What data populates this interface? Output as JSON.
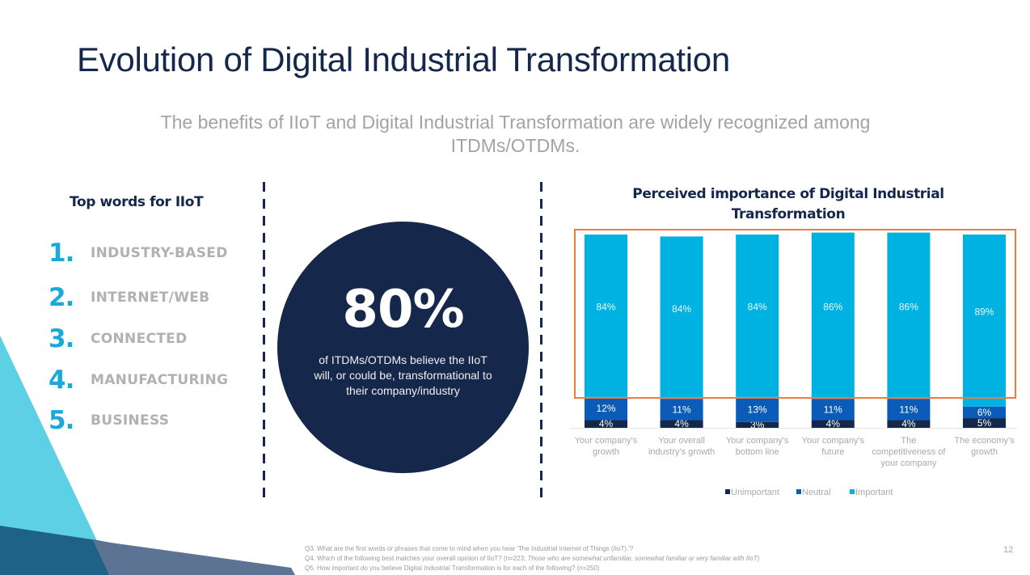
{
  "slide": {
    "title": "Evolution of Digital Industrial Transformation",
    "subtitle": "The benefits of IIoT and Digital Industrial Transformation are widely recognized among ITDMs/OTDMs.",
    "page_number": "12"
  },
  "top_words": {
    "heading": "Top words for IIoT",
    "items": [
      {
        "rank": "1.",
        "word": "INDUSTRY-BASED"
      },
      {
        "rank": "2.",
        "word": "INTERNET/WEB"
      },
      {
        "rank": "3.",
        "word": "CONNECTED"
      },
      {
        "rank": "4.",
        "word": "MANUFACTURING"
      },
      {
        "rank": "5.",
        "word": "BUSINESS"
      }
    ]
  },
  "stat_circle": {
    "value": "80%",
    "description": "of ITDMs/OTDMs believe the IIoT will, or could be, transformational to their company/industry"
  },
  "colors": {
    "navy": "#15284b",
    "unimportant": "#14284c",
    "neutral": "#0b5bb8",
    "important": "#00b2e2",
    "highlight_box": "#f07b3f",
    "accent_cyan": "#1aa9d9"
  },
  "chart_data": {
    "type": "bar",
    "stacked": true,
    "title": "Perceived importance of Digital Industrial Transformation",
    "xlabel": "",
    "ylabel": "",
    "ylim": [
      0,
      100
    ],
    "categories": [
      "Your company's growth",
      "Your overall industry's growth",
      "Your company's bottom line",
      "Your company's future",
      "The competitiveness of your company",
      "The economy's growth"
    ],
    "category_lines": [
      [
        "Your company's",
        "growth"
      ],
      [
        "Your overall",
        "industry's growth"
      ],
      [
        "Your company's",
        "bottom line"
      ],
      [
        "Your company's",
        "future"
      ],
      [
        "The",
        "competitiveness of",
        "your company"
      ],
      [
        "The economy's",
        "growth"
      ]
    ],
    "series": [
      {
        "name": "Unimportant",
        "color": "#14284c",
        "values": [
          4,
          4,
          3,
          4,
          4,
          5
        ]
      },
      {
        "name": "Neutral",
        "color": "#0b5bb8",
        "values": [
          12,
          11,
          13,
          11,
          11,
          6
        ]
      },
      {
        "name": "Important",
        "color": "#00b2e2",
        "values": [
          84,
          84,
          84,
          86,
          86,
          89
        ]
      }
    ],
    "value_suffix": "%",
    "legend": {
      "position": "bottom-center",
      "entries": [
        "Unimportant",
        "Neutral",
        "Important"
      ]
    },
    "annotation": "orange highlight box around the Important segments",
    "grid": false
  },
  "footnotes": {
    "q3": "Q3. What are the first words or phrases that come to mind when you hear 'The Industrial Internet of Things (IIoT).'?",
    "q4_main": "Q4. Which of the following best matches your overall opinion of IIoT? (n=223; ",
    "q4_italic": "Those who are somewhat unfamiliar, somewhat familiar or very familiar with IIoT",
    "q4_end": ")",
    "q5": "Q5. How important do you believe Digital Industrial Transformation is for each of the following? (n=250)"
  }
}
